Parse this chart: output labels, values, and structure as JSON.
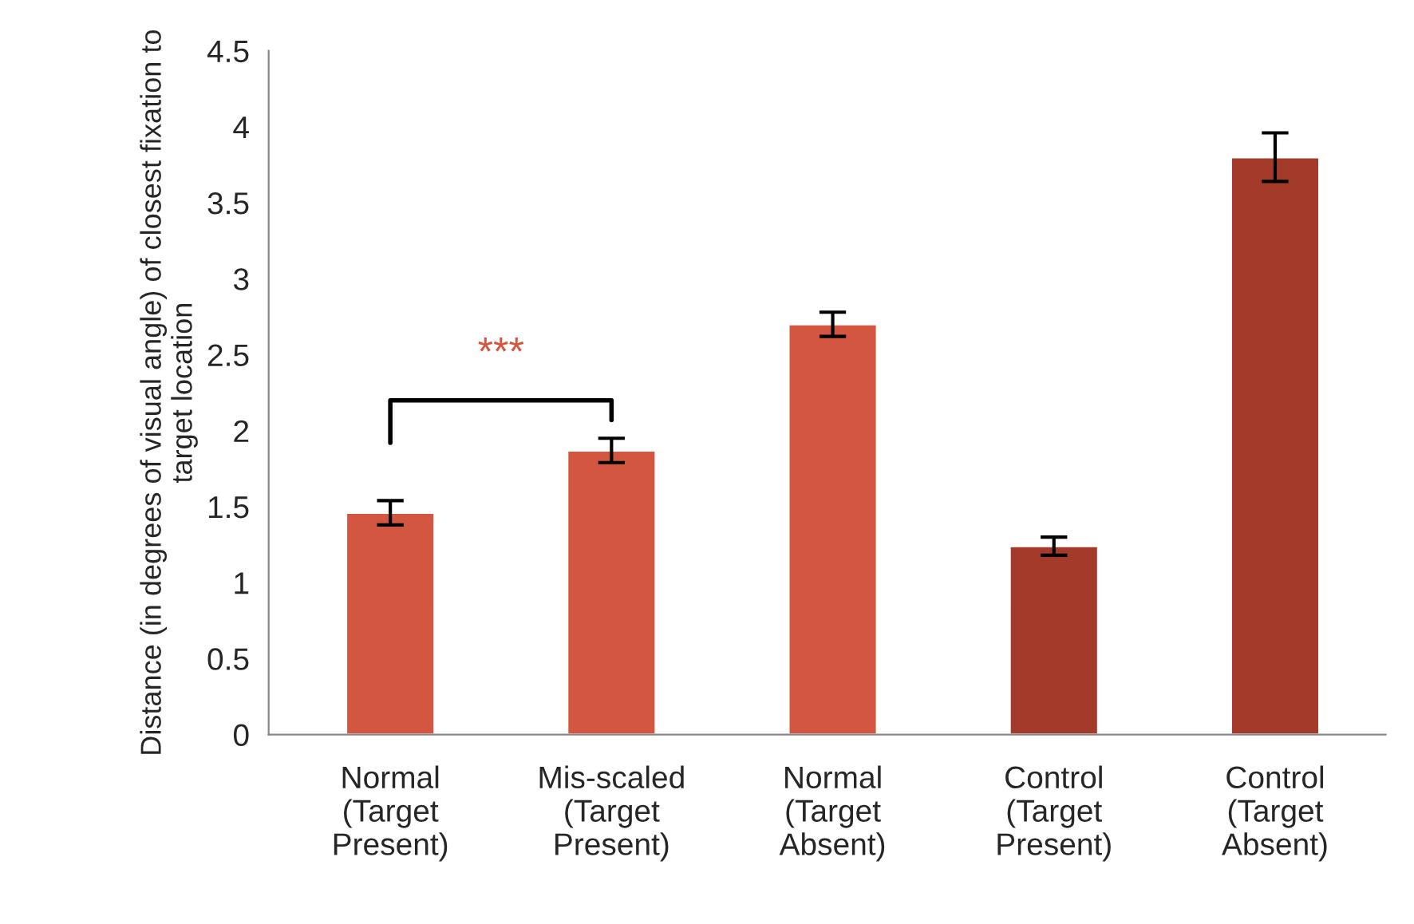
{
  "chart_data": {
    "type": "bar",
    "ylabel": "Distance (in degrees of visual angle) of closest fixation to target location",
    "categories": [
      "Normal\n(Target\nPresent)",
      "Mis-scaled\n(Target\nPresent)",
      "Normal\n(Target\nAbsent)",
      "Control\n(Target\nPresent)",
      "Control\n(Target\nAbsent)"
    ],
    "values": [
      1.46,
      1.87,
      2.7,
      1.24,
      3.8
    ],
    "errors": [
      0.08,
      0.08,
      0.08,
      0.06,
      0.16
    ],
    "colors": [
      "#d35640",
      "#d35640",
      "#d35640",
      "#a33a2a",
      "#a33a2a"
    ],
    "ylim": [
      0,
      4.5
    ],
    "yticks": [
      0,
      0.5,
      1,
      1.5,
      2,
      2.5,
      3,
      3.5,
      4,
      4.5
    ],
    "grid": false,
    "annotations": [
      "***"
    ]
  }
}
